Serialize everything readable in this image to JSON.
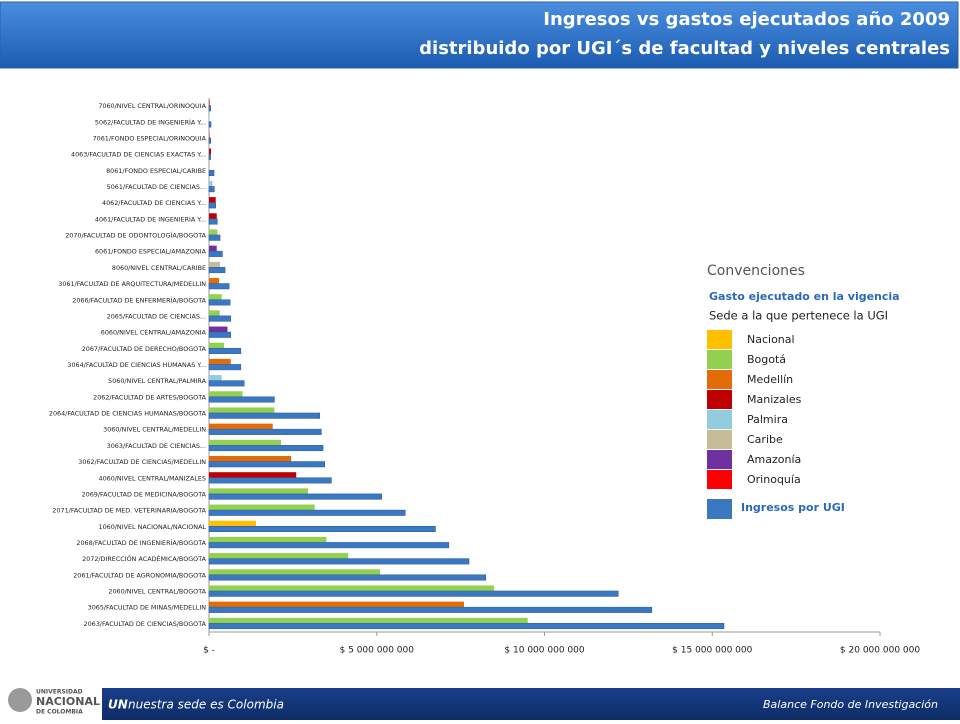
{
  "header": {
    "title": "Ingresos vs gastos ejecutados año 2009",
    "subtitle": "distribuido por UGI´s de facultad y niveles centrales"
  },
  "footer": {
    "logo_line1": "UNIVERSIDAD",
    "logo_line2": "NACIONAL",
    "logo_line3": "DE COLOMBIA",
    "left_bold": "UN",
    "left": "nuestra sede es Colombia",
    "right": "Balance Fondo de Investigación"
  },
  "chart_data": {
    "type": "hbar",
    "categories": [
      "7060/NIVEL CENTRAL/ORINOQUIA",
      "5062/FACULTAD DE INGENIERÍA Y...",
      "7061/FONDO ESPECIAL/ORINOQUIA",
      "4063/FACULTAD DE CIENCIAS EXACTAS Y...",
      "8061/FONDO ESPECIAL/CARIBE",
      "5061/FACULTAD DE CIENCIAS...",
      "4062/FACULTAD DE CIENCIAS Y...",
      "4061/FACULTAD DE INGENIERIA Y...",
      "2070/FACULTAD DE ODONTOLOGÍA/BOGOTA",
      "6061/FONDO ESPECIAL/AMAZONIA",
      "8060/NIVEL CENTRAL/CARIBE",
      "3061/FACULTAD DE ARQUITECTURA/MEDELLIN",
      "2066/FACULTAD DE ENFERMERÍA/BOGOTA",
      "2065/FACULTAD DE CIENCIAS...",
      "6060/NIVEL CENTRAL/AMAZONIA",
      "2067/FACULTAD DE DERECHO/BOGOTA",
      "3064/FACULTAD DE CIENCIAS HUMANAS Y...",
      "5060/NIVEL CENTRAL/PALMIRA",
      "2062/FACULTAD DE ARTES/BOGOTA",
      "2064/FACULTAD DE CIENCIAS HUMANAS/BOGOTA",
      "3060/NIVEL CENTRAL/MEDELLIN",
      "3063/FACULTAD DE CIENCIAS...",
      "3062/FACULTAD DE CIENCIAS/MEDELLIN",
      "4060/NIVEL CENTRAL/MANIZALES",
      "2069/FACULTAD DE MEDICINA/BOGOTA",
      "2071/FACULTAD DE MED. VETERINARIA/BOGOTA",
      "1060/NIVEL NACIONAL/NACIONAL",
      "2068/FACULTAD DE INGENIERÍA/BOGOTA",
      "2072/DIRECCIÓN ACADÉMICA/BOGOTA",
      "2061/FACULTAD DE AGRONOMIA/BOGOTA",
      "2060/NIVEL CENTRAL/BOGOTA",
      "3065/FACULTAD DE MINAS/MEDELLIN",
      "2063/FACULTAD DE CIENCIAS/BOGOTA"
    ],
    "series": [
      {
        "name": "Gasto ejecutado en la vigencia",
        "values": [
          20000000,
          10000000,
          10000000,
          60000000,
          20000000,
          100000000,
          200000000,
          230000000,
          250000000,
          230000000,
          330000000,
          300000000,
          380000000,
          320000000,
          550000000,
          450000000,
          650000000,
          380000000,
          1000000000,
          1950000000,
          1900000000,
          2150000000,
          2450000000,
          2600000000,
          2950000000,
          3150000000,
          1400000000,
          3500000000,
          4150000000,
          5100000000,
          8500000000,
          7600000000,
          9500000000
        ],
        "colors": [
          "#ff0000",
          "#93cddd",
          "#ff0000",
          "#c00000",
          "#c4bd97",
          "#93cddd",
          "#c00000",
          "#c00000",
          "#92d050",
          "#7030a0",
          "#c4bd97",
          "#e36c09",
          "#92d050",
          "#92d050",
          "#7030a0",
          "#92d050",
          "#e36c09",
          "#93cddd",
          "#92d050",
          "#92d050",
          "#e36c09",
          "#92d050",
          "#e36c09",
          "#c00000",
          "#92d050",
          "#92d050",
          "#ffc000",
          "#92d050",
          "#92d050",
          "#92d050",
          "#92d050",
          "#e36c09",
          "#92d050"
        ]
      },
      {
        "name": "Ingresos por UGI",
        "color": "#3a78c2",
        "values": [
          50000000,
          60000000,
          50000000,
          50000000,
          150000000,
          160000000,
          200000000,
          250000000,
          330000000,
          400000000,
          480000000,
          600000000,
          630000000,
          650000000,
          650000000,
          950000000,
          950000000,
          1050000000,
          1950000000,
          3300000000,
          3350000000,
          3400000000,
          3450000000,
          3650000000,
          5150000000,
          5850000000,
          6750000000,
          7150000000,
          7750000000,
          8250000000,
          12200000000,
          13200000000,
          15350000000
        ]
      }
    ],
    "xlim": [
      0,
      20000000000
    ],
    "xticks": [
      {
        "value": 0,
        "label": "$ -"
      },
      {
        "value": 5000000000,
        "label": "$ 5 000 000 000"
      },
      {
        "value": 10000000000,
        "label": "$ 10 000 000 000"
      },
      {
        "value": 15000000000,
        "label": "$ 15 000 000 000"
      },
      {
        "value": 20000000000,
        "label": "$ 20 000 000 000"
      }
    ],
    "legend": {
      "title": "Convenciones",
      "heading": "Sede a la que pertenece la UGI",
      "sedes": [
        {
          "name": "Nacional",
          "color": "#ffc000"
        },
        {
          "name": "Bogotá",
          "color": "#92d050"
        },
        {
          "name": "Medellín",
          "color": "#e36c09"
        },
        {
          "name": "Manizales",
          "color": "#c00000"
        },
        {
          "name": "Palmira",
          "color": "#93cddd"
        },
        {
          "name": "Caribe",
          "color": "#c4bd97"
        },
        {
          "name": "Amazonía",
          "color": "#7030a0"
        },
        {
          "name": "Orinoquía",
          "color": "#ff0000"
        }
      ]
    }
  }
}
